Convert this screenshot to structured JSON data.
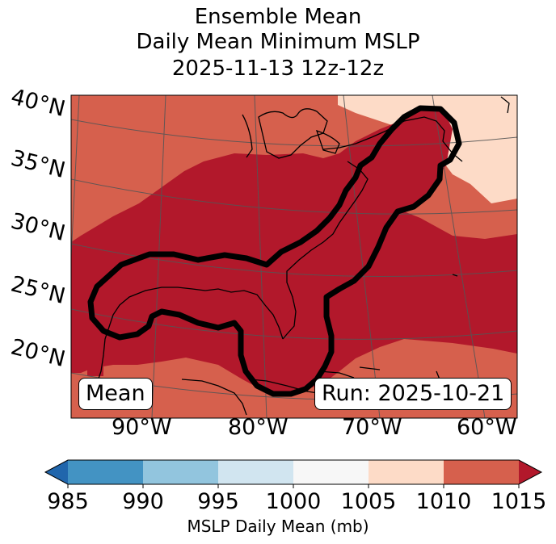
{
  "title": {
    "line1": "Ensemble Mean",
    "line2": "Daily Mean Minimum MSLP",
    "line3": "2025-11-13 12z-12z"
  },
  "map": {
    "lat_labels": [
      "40°N",
      "35°N",
      "30°N",
      "25°N",
      "20°N"
    ],
    "lon_labels": [
      "90°W",
      "80°W",
      "70°W",
      "60°W"
    ],
    "mean_label": "Mean",
    "run_label": "Run: 2025-10-21",
    "fill_colors": {
      "light": "#fddbc7",
      "medium": "#d6604d",
      "dark": "#b2182b"
    }
  },
  "colorbar": {
    "title": "MSLP Daily Mean (mb)",
    "ticks": [
      "985",
      "990",
      "995",
      "1000",
      "1005",
      "1010",
      "1015"
    ],
    "colors": [
      "#4393c3",
      "#92c5de",
      "#d1e5f0",
      "#f7f7f7",
      "#fddbc7",
      "#d6604d"
    ],
    "under_color": "#2166ac",
    "over_color": "#b2182b"
  }
}
